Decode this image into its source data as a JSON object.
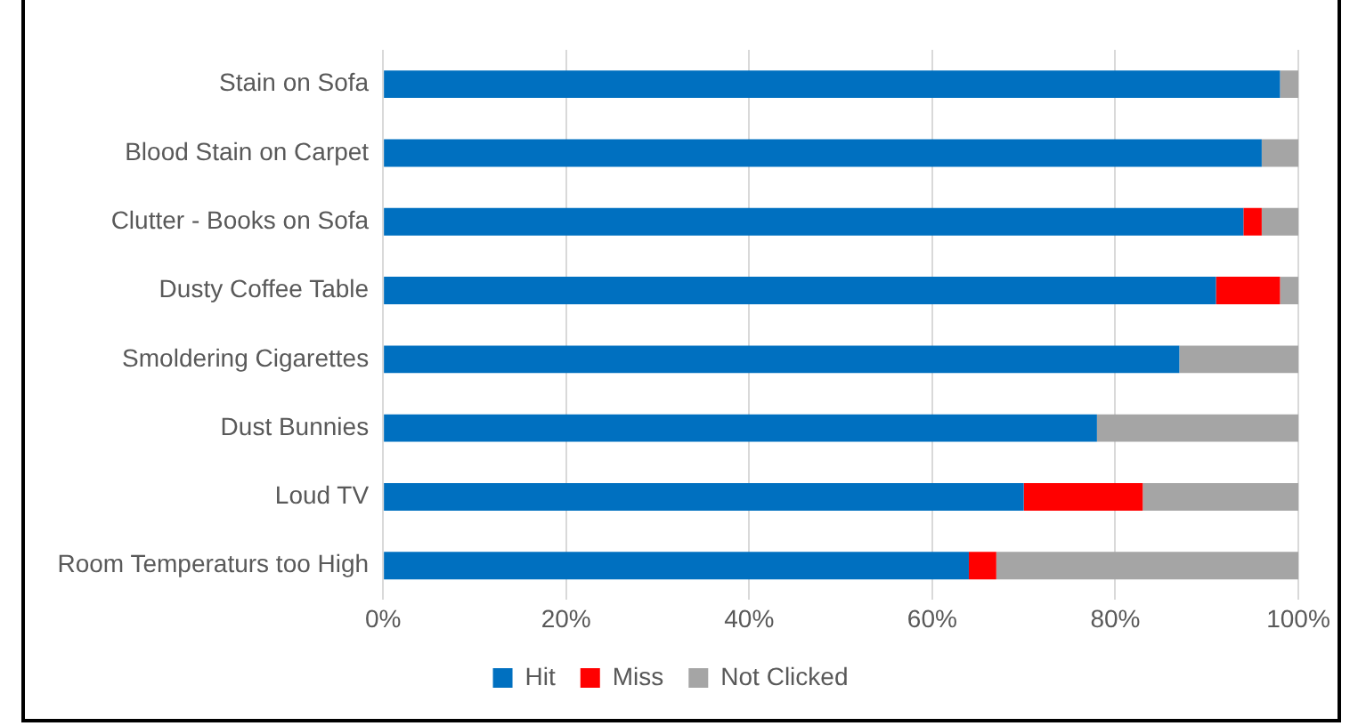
{
  "chart_data": {
    "type": "bar",
    "orientation": "horizontal",
    "stacked": true,
    "categories": [
      "Stain on Sofa",
      "Blood Stain on Carpet",
      "Clutter - Books on Sofa",
      "Dusty Coffee Table",
      "Smoldering Cigarettes",
      "Dust Bunnies",
      "Loud TV",
      "Room Temperaturs too High"
    ],
    "series": [
      {
        "name": "Hit",
        "color": "#0070c0",
        "values": [
          98,
          96,
          94,
          91,
          87,
          78,
          70,
          64
        ]
      },
      {
        "name": "Miss",
        "color": "#ff0000",
        "values": [
          0,
          0,
          2,
          7,
          0,
          0,
          13,
          3
        ]
      },
      {
        "name": "Not Clicked",
        "color": "#a5a5a5",
        "values": [
          2,
          4,
          4,
          2,
          13,
          22,
          17,
          33
        ]
      }
    ],
    "xlim": [
      0,
      100
    ],
    "xticks": [
      {
        "value": 0,
        "label": "0%"
      },
      {
        "value": 20,
        "label": "20%"
      },
      {
        "value": 40,
        "label": "40%"
      },
      {
        "value": 60,
        "label": "60%"
      },
      {
        "value": 80,
        "label": "80%"
      },
      {
        "value": 100,
        "label": "100%"
      }
    ],
    "grid": "x",
    "legend": "bottom"
  }
}
